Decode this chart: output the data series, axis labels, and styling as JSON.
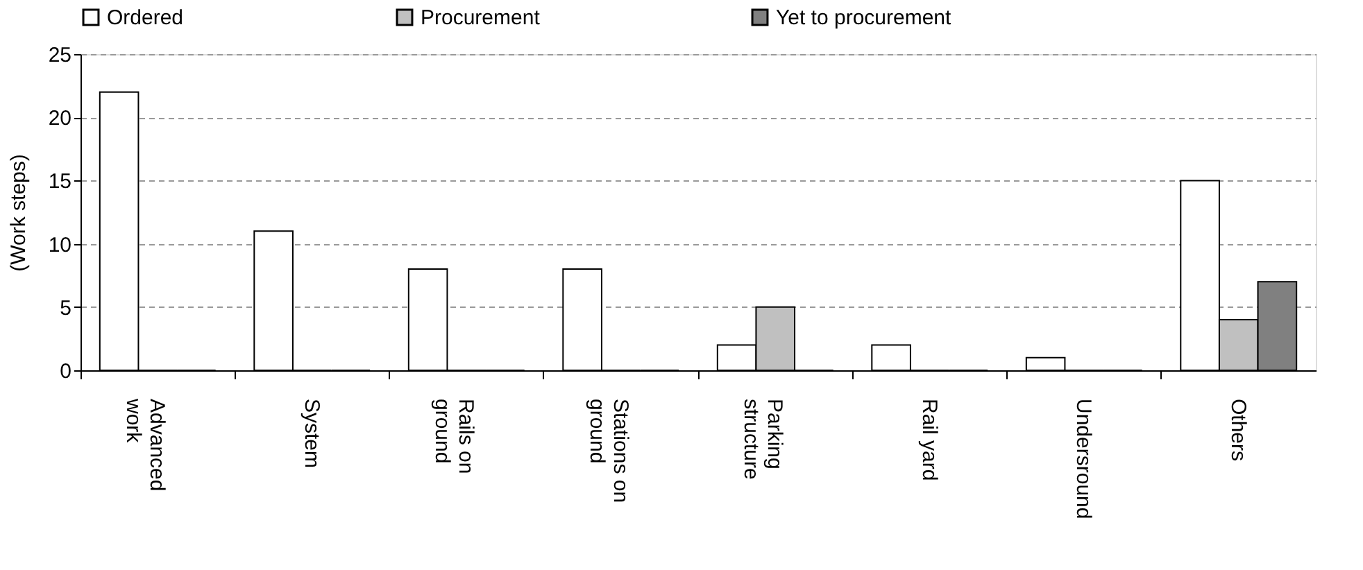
{
  "chart_data": {
    "type": "bar",
    "ylabel": "(Work steps)",
    "categories": [
      "Advanced\nwork",
      "System",
      "Rails on\nground",
      "Stations on\nground",
      "Parking\nstructure",
      "Rail yard",
      "Undersround",
      "Others"
    ],
    "series": [
      {
        "name": "Ordered",
        "color": "#ffffff",
        "values": [
          22,
          11,
          8,
          8,
          2,
          2,
          1,
          15
        ]
      },
      {
        "name": "Procurement",
        "color": "#c0c0c0",
        "values": [
          0,
          0,
          0,
          0,
          5,
          0,
          0,
          4
        ]
      },
      {
        "name": "Yet to procurement",
        "color": "#808080",
        "values": [
          0,
          0,
          0,
          0,
          0,
          0,
          0,
          7
        ]
      }
    ],
    "ylim": [
      0,
      25
    ],
    "yticks": [
      0,
      5,
      10,
      15,
      20,
      25
    ],
    "grid": "y",
    "legend": "top"
  }
}
